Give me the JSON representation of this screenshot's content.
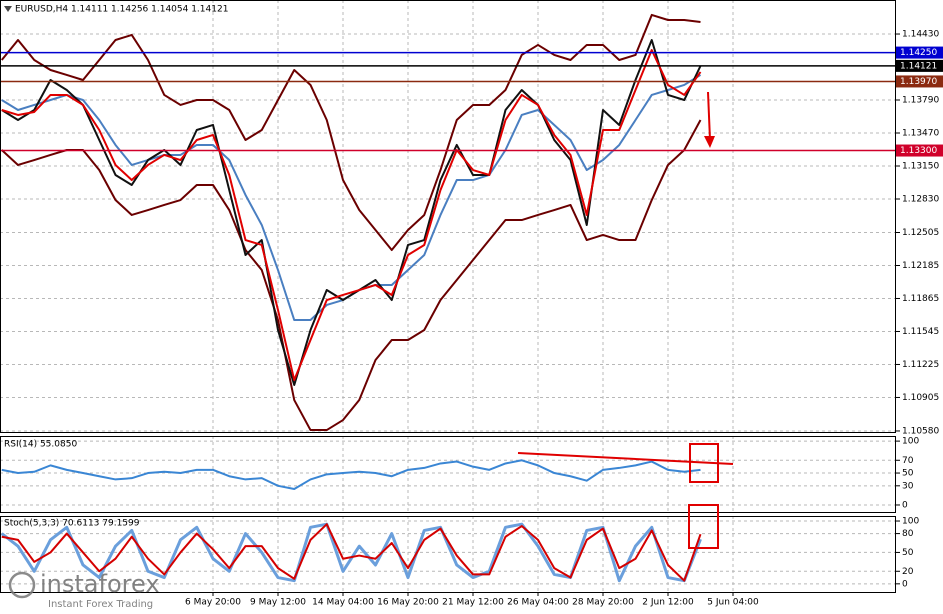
{
  "chart_data": [
    {
      "type": "line",
      "title": "EURUSD,H4  1.14111 1.14256 1.14054 1.14121",
      "ylim": [
        1.1057,
        1.1476
      ],
      "yticks": [
        {
          "value": 1.1443,
          "label": "1.14430"
        },
        {
          "value": 1.1379,
          "label": "1.13790"
        },
        {
          "value": 1.1347,
          "label": "1.13470"
        },
        {
          "value": 1.1315,
          "label": "1.13150"
        },
        {
          "value": 1.1283,
          "label": "1.12830"
        },
        1.12505,
        1.12185,
        1.11865,
        1.11545,
        1.11225,
        1.10905,
        {
          "value": 1.1058,
          "label": "1.10580"
        }
      ],
      "grid": true,
      "levels": [
        {
          "value": 1.1425,
          "label": "1.14250",
          "color": "#0000d0"
        },
        {
          "value": 1.14121,
          "label": "1.14121",
          "color": "#000000"
        },
        {
          "value": 1.1397,
          "label": "1.13970",
          "color": "#8b2a10"
        },
        {
          "value": 1.133,
          "label": "1.13300",
          "color": "#d0002a"
        }
      ],
      "series": [
        {
          "color": "#6b0000",
          "values": [
            1.14178,
            1.14372,
            1.14178,
            1.14081,
            1.14033,
            1.13984,
            1.14178,
            1.14372,
            1.14421,
            1.14178,
            1.13839,
            1.13742,
            1.1379,
            1.1379,
            1.13693,
            1.13402,
            1.13499,
            1.1379,
            1.14081,
            1.13936,
            1.13596,
            1.13014,
            1.12723,
            1.12529,
            1.12335,
            1.12529,
            1.12675,
            1.13111,
            1.13596,
            1.13742,
            1.13742,
            1.13887,
            1.14227,
            1.14324,
            1.14227,
            1.14178,
            1.14324,
            1.14324,
            1.14178,
            1.14227,
            1.14615,
            1.14566,
            1.14566,
            1.14547,
            null,
            null
          ]
        },
        {
          "color": "#6b0000",
          "values": [
            1.13305,
            1.1316,
            1.13208,
            1.13257,
            1.13305,
            1.13305,
            1.13111,
            1.1282,
            1.12675,
            1.12723,
            1.12772,
            1.1282,
            1.12966,
            1.12966,
            1.12723,
            1.12335,
            1.12141,
            1.11656,
            1.1088,
            1.10589,
            1.10589,
            1.10686,
            1.1088,
            1.11268,
            1.11462,
            1.11462,
            1.11559,
            1.1185,
            1.12044,
            1.12238,
            1.12432,
            1.12626,
            1.12626,
            1.12675,
            1.12723,
            1.12772,
            1.12432,
            1.12481,
            1.12432,
            1.12432,
            1.1282,
            1.1316,
            1.13305,
            1.13596,
            null,
            null
          ]
        },
        {
          "color": "#4a7fc1",
          "values": [
            1.1379,
            1.13693,
            1.13742,
            1.1379,
            1.13839,
            1.1379,
            1.13596,
            1.13354,
            1.1316,
            1.13208,
            1.13257,
            1.13257,
            1.13354,
            1.13354,
            1.13208,
            1.12869,
            1.12578,
            1.12141,
            1.11656,
            1.11656,
            1.11802,
            1.1185,
            1.11947,
            1.11996,
            1.11996,
            1.12141,
            1.12287,
            1.12675,
            1.13014,
            1.13014,
            1.13063,
            1.13305,
            1.13645,
            1.13693,
            1.13548,
            1.13402,
            1.13111,
            1.13208,
            1.13354,
            1.13596,
            1.13839,
            1.13887,
            1.13936,
            1.14033,
            null,
            null
          ]
        },
        {
          "color": "#111111",
          "values": [
            1.13693,
            1.13596,
            1.13693,
            1.13984,
            1.13887,
            1.13742,
            1.13402,
            1.13063,
            1.12966,
            1.13208,
            1.13305,
            1.1316,
            1.13499,
            1.13548,
            1.12917,
            1.12287,
            1.12432,
            1.11559,
            1.11026,
            1.11559,
            1.11947,
            1.1185,
            1.11947,
            1.12044,
            1.1185,
            1.12384,
            1.12432,
            1.13014,
            1.13354,
            1.13063,
            1.13063,
            1.13693,
            1.13887,
            1.13742,
            1.13402,
            1.13208,
            1.12578,
            1.13693,
            1.13548,
            1.13984,
            1.14372,
            1.13839,
            1.1379,
            1.14121,
            null,
            null
          ]
        },
        {
          "color": "#e00000",
          "values": [
            1.13693,
            1.13645,
            1.13674,
            1.13839,
            1.13839,
            1.13742,
            1.13499,
            1.1316,
            1.13014,
            1.1316,
            1.13257,
            1.13208,
            1.13402,
            1.13451,
            1.13063,
            1.12432,
            1.12384,
            1.11753,
            1.11074,
            1.11462,
            1.1185,
            1.11899,
            1.11947,
            1.11996,
            1.11899,
            1.12287,
            1.12384,
            1.12917,
            1.13305,
            1.13111,
            1.13063,
            1.13596,
            1.13839,
            1.13742,
            1.13451,
            1.13257,
            1.12675,
            1.13499,
            1.13499,
            1.13887,
            1.14275,
            1.13936,
            1.13839,
            1.14062,
            null,
            null
          ]
        }
      ]
    },
    {
      "type": "line",
      "title": "RSI(14) 55.0850",
      "ylim": [
        -11,
        108
      ],
      "yticks": [
        0,
        30,
        50,
        70,
        100
      ],
      "grid": true,
      "series": [
        {
          "color": "#3a86d4",
          "values": [
            55,
            50,
            52,
            62,
            55,
            50,
            45,
            40,
            42,
            50,
            52,
            50,
            55,
            55,
            45,
            40,
            42,
            30,
            25,
            40,
            48,
            50,
            52,
            50,
            45,
            55,
            58,
            65,
            68,
            60,
            55,
            65,
            70,
            62,
            50,
            45,
            38,
            55,
            58,
            62,
            68,
            55,
            52,
            55,
            null,
            null
          ]
        }
      ]
    },
    {
      "type": "line",
      "title": "Stoch(5,3,3) 70.6113 79.1599",
      "ylim": [
        -13,
        108
      ],
      "yticks": [
        0,
        20,
        50,
        80,
        100
      ],
      "grid": true,
      "categories": [
        null,
        null,
        null,
        null,
        null,
        null,
        null,
        null,
        null,
        null,
        null,
        null,
        null,
        "6 May 20:00",
        null,
        null,
        null,
        "9 May 12:00",
        null,
        null,
        null,
        "14 May 04:00",
        null,
        null,
        null,
        "16 May 20:00",
        null,
        null,
        null,
        "21 May 12:00",
        null,
        null,
        null,
        "26 May 04:00",
        null,
        null,
        null,
        "28 May 20:00",
        null,
        null,
        null,
        "2 Jun 12:00",
        null,
        null,
        null,
        "5 Jun 04:00"
      ],
      "series": [
        {
          "color": "#6a9fdc",
          "values": [
            80,
            60,
            20,
            70,
            90,
            30,
            10,
            60,
            85,
            20,
            10,
            70,
            90,
            40,
            20,
            80,
            50,
            10,
            5,
            90,
            95,
            20,
            60,
            30,
            80,
            10,
            85,
            90,
            30,
            10,
            20,
            90,
            95,
            60,
            15,
            10,
            85,
            90,
            5,
            60,
            90,
            10,
            5,
            71,
            null,
            null
          ]
        },
        {
          "color": "#d40000",
          "values": [
            75,
            70,
            35,
            50,
            80,
            50,
            20,
            40,
            75,
            40,
            15,
            50,
            80,
            55,
            25,
            60,
            60,
            25,
            8,
            70,
            95,
            40,
            45,
            40,
            65,
            25,
            70,
            88,
            45,
            15,
            15,
            75,
            92,
            70,
            25,
            10,
            70,
            88,
            25,
            40,
            85,
            30,
            5,
            79,
            null,
            null
          ]
        }
      ]
    }
  ],
  "branding": {
    "logo": "instaforex",
    "tagline": "Instant Forex Trading"
  }
}
